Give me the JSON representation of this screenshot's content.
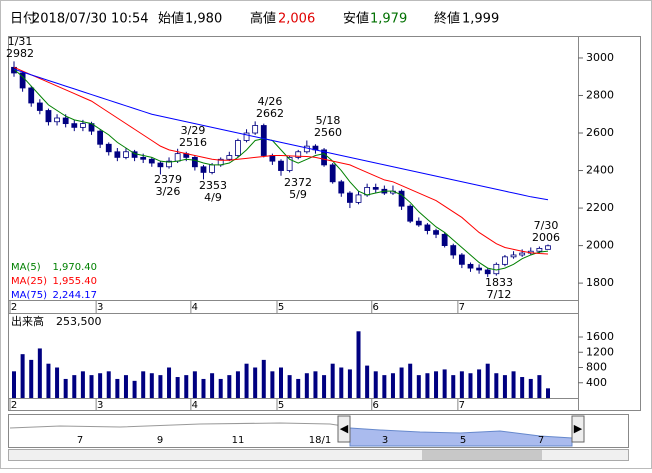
{
  "header": {
    "items": [
      {
        "label": "日付",
        "value": "2018/07/30 10:54"
      },
      {
        "label": "始値",
        "value": "1,980"
      },
      {
        "label": "高値",
        "value": "2,006"
      },
      {
        "label": "安値",
        "value": "1,979"
      },
      {
        "label": "終値",
        "value": "1,999"
      }
    ]
  },
  "chart_data": [
    {
      "type": "candlestick",
      "categories": [
        "2",
        null,
        null,
        null,
        null,
        null,
        null,
        null,
        null,
        null,
        "3",
        null,
        null,
        null,
        null,
        null,
        null,
        null,
        null,
        null,
        null,
        "4",
        null,
        null,
        null,
        null,
        null,
        null,
        null,
        null,
        null,
        "5",
        null,
        null,
        null,
        null,
        null,
        null,
        null,
        null,
        null,
        null,
        "6",
        null,
        null,
        null,
        null,
        null,
        null,
        null,
        null,
        null,
        "7",
        null,
        null,
        null,
        null,
        null,
        null,
        null,
        null,
        null,
        null
      ],
      "open": [
        2950,
        2920,
        2840,
        2760,
        2720,
        2660,
        2680,
        2650,
        2630,
        2650,
        2610,
        2540,
        2500,
        2470,
        2500,
        2470,
        2460,
        2440,
        2420,
        2450,
        2490,
        2470,
        2420,
        2390,
        2430,
        2460,
        2480,
        2560,
        2600,
        2640,
        2480,
        2450,
        2400,
        2470,
        2500,
        2530,
        2510,
        2430,
        2340,
        2280,
        2230,
        2270,
        2310,
        2300,
        2280,
        2290,
        2210,
        2130,
        2110,
        2080,
        2060,
        2000,
        1950,
        1900,
        1880,
        1870,
        1850,
        1900,
        1940,
        1950,
        1960,
        1970,
        1980
      ],
      "high": [
        2982,
        2930,
        2850,
        2780,
        2730,
        2700,
        2700,
        2670,
        2670,
        2660,
        2620,
        2550,
        2520,
        2520,
        2510,
        2490,
        2470,
        2450,
        2470,
        2516,
        2500,
        2480,
        2430,
        2440,
        2470,
        2500,
        2570,
        2620,
        2662,
        2650,
        2490,
        2460,
        2480,
        2510,
        2560,
        2540,
        2520,
        2440,
        2350,
        2290,
        2290,
        2330,
        2330,
        2320,
        2320,
        2300,
        2220,
        2150,
        2120,
        2090,
        2070,
        2010,
        1960,
        1910,
        1900,
        1880,
        1910,
        1950,
        1970,
        1980,
        1990,
        1995,
        2006
      ],
      "low": [
        2900,
        2820,
        2740,
        2700,
        2640,
        2640,
        2630,
        2610,
        2610,
        2590,
        2520,
        2480,
        2450,
        2460,
        2450,
        2440,
        2420,
        2379,
        2410,
        2440,
        2450,
        2400,
        2353,
        2380,
        2420,
        2450,
        2470,
        2550,
        2590,
        2470,
        2430,
        2372,
        2390,
        2460,
        2490,
        2490,
        2420,
        2330,
        2260,
        2200,
        2220,
        2260,
        2280,
        2270,
        2270,
        2190,
        2120,
        2100,
        2060,
        2040,
        1990,
        1930,
        1880,
        1860,
        1850,
        1833,
        1840,
        1890,
        1930,
        1940,
        1950,
        1960,
        1979
      ],
      "close": [
        2920,
        2840,
        2760,
        2720,
        2660,
        2680,
        2650,
        2630,
        2650,
        2610,
        2540,
        2500,
        2470,
        2500,
        2470,
        2460,
        2440,
        2420,
        2450,
        2490,
        2470,
        2420,
        2390,
        2430,
        2460,
        2480,
        2560,
        2600,
        2640,
        2480,
        2450,
        2400,
        2470,
        2500,
        2530,
        2510,
        2430,
        2340,
        2280,
        2230,
        2270,
        2310,
        2300,
        2280,
        2290,
        2210,
        2130,
        2110,
        2080,
        2060,
        2000,
        1950,
        1900,
        1880,
        1870,
        1850,
        1900,
        1940,
        1950,
        1960,
        1970,
        1985,
        1999
      ],
      "up_color": "#ffffff",
      "down_color": "#000080",
      "lines": [
        {
          "name": "MA(5)",
          "color": "#008000",
          "last_label": "1,970.40",
          "values": [
            2940,
            2900,
            2850,
            2800,
            2750,
            2720,
            2690,
            2670,
            2660,
            2650,
            2620,
            2590,
            2550,
            2520,
            2490,
            2480,
            2470,
            2450,
            2445,
            2450,
            2460,
            2455,
            2440,
            2430,
            2430,
            2440,
            2470,
            2510,
            2560,
            2570,
            2560,
            2510,
            2460,
            2440,
            2460,
            2480,
            2490,
            2450,
            2400,
            2340,
            2290,
            2270,
            2280,
            2290,
            2290,
            2270,
            2230,
            2180,
            2140,
            2100,
            2070,
            2030,
            1990,
            1950,
            1910,
            1880,
            1870,
            1880,
            1900,
            1930,
            1950,
            1965,
            1970.4
          ]
        },
        {
          "name": "MA(25)",
          "color": "#ff0000",
          "last_label": "1,955.40",
          "values": [
            2950,
            2930,
            2910,
            2890,
            2870,
            2850,
            2830,
            2810,
            2790,
            2770,
            2740,
            2710,
            2680,
            2650,
            2620,
            2590,
            2560,
            2530,
            2510,
            2500,
            2490,
            2480,
            2470,
            2460,
            2455,
            2455,
            2460,
            2465,
            2470,
            2475,
            2480,
            2480,
            2478,
            2476,
            2475,
            2470,
            2460,
            2450,
            2440,
            2430,
            2410,
            2390,
            2370,
            2350,
            2340,
            2320,
            2300,
            2280,
            2260,
            2240,
            2210,
            2180,
            2150,
            2110,
            2070,
            2040,
            2010,
            1990,
            1980,
            1970,
            1962,
            1958,
            1955.4
          ]
        },
        {
          "name": "MA(75)",
          "color": "#0000ff",
          "last_label": "2,244.17",
          "values": [
            2940,
            2925,
            2910,
            2895,
            2880,
            2865,
            2850,
            2835,
            2820,
            2805,
            2790,
            2775,
            2760,
            2745,
            2730,
            2715,
            2700,
            2690,
            2680,
            2670,
            2660,
            2650,
            2640,
            2630,
            2620,
            2610,
            2600,
            2590,
            2580,
            2570,
            2560,
            2550,
            2540,
            2530,
            2520,
            2510,
            2500,
            2490,
            2480,
            2470,
            2460,
            2450,
            2440,
            2430,
            2420,
            2410,
            2400,
            2390,
            2380,
            2370,
            2360,
            2350,
            2340,
            2330,
            2320,
            2310,
            2300,
            2290,
            2280,
            2270,
            2260,
            2252,
            2244.17
          ]
        }
      ],
      "ylim": [
        1710,
        3117
      ],
      "yticks": [
        1800,
        2000,
        2200,
        2400,
        2600,
        2800,
        3000
      ],
      "annotations": [
        {
          "date": "1/31",
          "price": "2982"
        },
        {
          "date": "3/29",
          "price": "2516"
        },
        {
          "date": "3/26",
          "price": "2379"
        },
        {
          "date": "4/9",
          "price": "2353"
        },
        {
          "date": "4/26",
          "price": "2662"
        },
        {
          "date": "5/9",
          "price": "2372"
        },
        {
          "date": "5/18",
          "price": "2560"
        },
        {
          "date": "7/12",
          "price": "1833"
        },
        {
          "date": "7/30",
          "price": "2006"
        }
      ]
    },
    {
      "type": "bar",
      "title": "出来高",
      "subtitle": "253,500",
      "color": "#000080",
      "values": [
        700,
        1150,
        1000,
        1300,
        900,
        800,
        500,
        600,
        700,
        600,
        650,
        700,
        500,
        600,
        450,
        700,
        650,
        600,
        800,
        550,
        600,
        700,
        500,
        650,
        500,
        600,
        700,
        900,
        800,
        1000,
        700,
        800,
        600,
        500,
        650,
        700,
        600,
        900,
        800,
        750,
        1750,
        850,
        700,
        600,
        650,
        800,
        900,
        600,
        650,
        700,
        750,
        600,
        700,
        650,
        750,
        900,
        650,
        600,
        700,
        550,
        500,
        600,
        253.5
      ],
      "ylim": [
        0,
        2230
      ],
      "yticks": [
        400,
        800,
        1200,
        1600
      ]
    }
  ],
  "navigator": {
    "labels": [
      "7",
      "9",
      "11",
      "18/1",
      "3",
      "5",
      "7"
    ]
  }
}
